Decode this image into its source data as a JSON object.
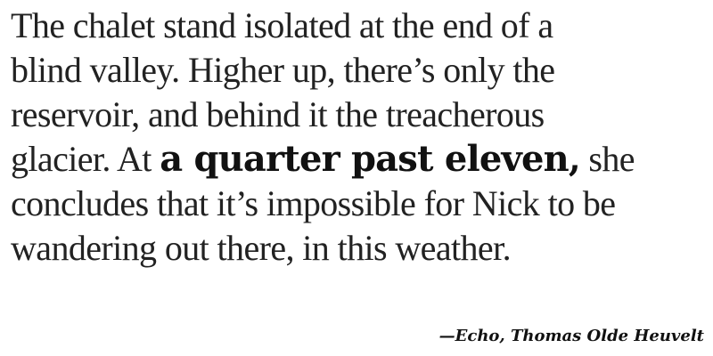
{
  "quote": {
    "line1": "The chalet stand isolated at the end of a",
    "line2": "blind valley. Higher up, there’s only the",
    "line3": "reservoir, and behind it the treacherous",
    "line4_before": "glacier. At ",
    "line4_emphasis": "a quarter past eleven,",
    "line4_after": " she",
    "line5": "concludes that it’s impossible for Nick to be",
    "line6": "wandering out there, in this weather."
  },
  "attribution": {
    "text": "—Echo, Thomas Olde Heuvelt"
  }
}
